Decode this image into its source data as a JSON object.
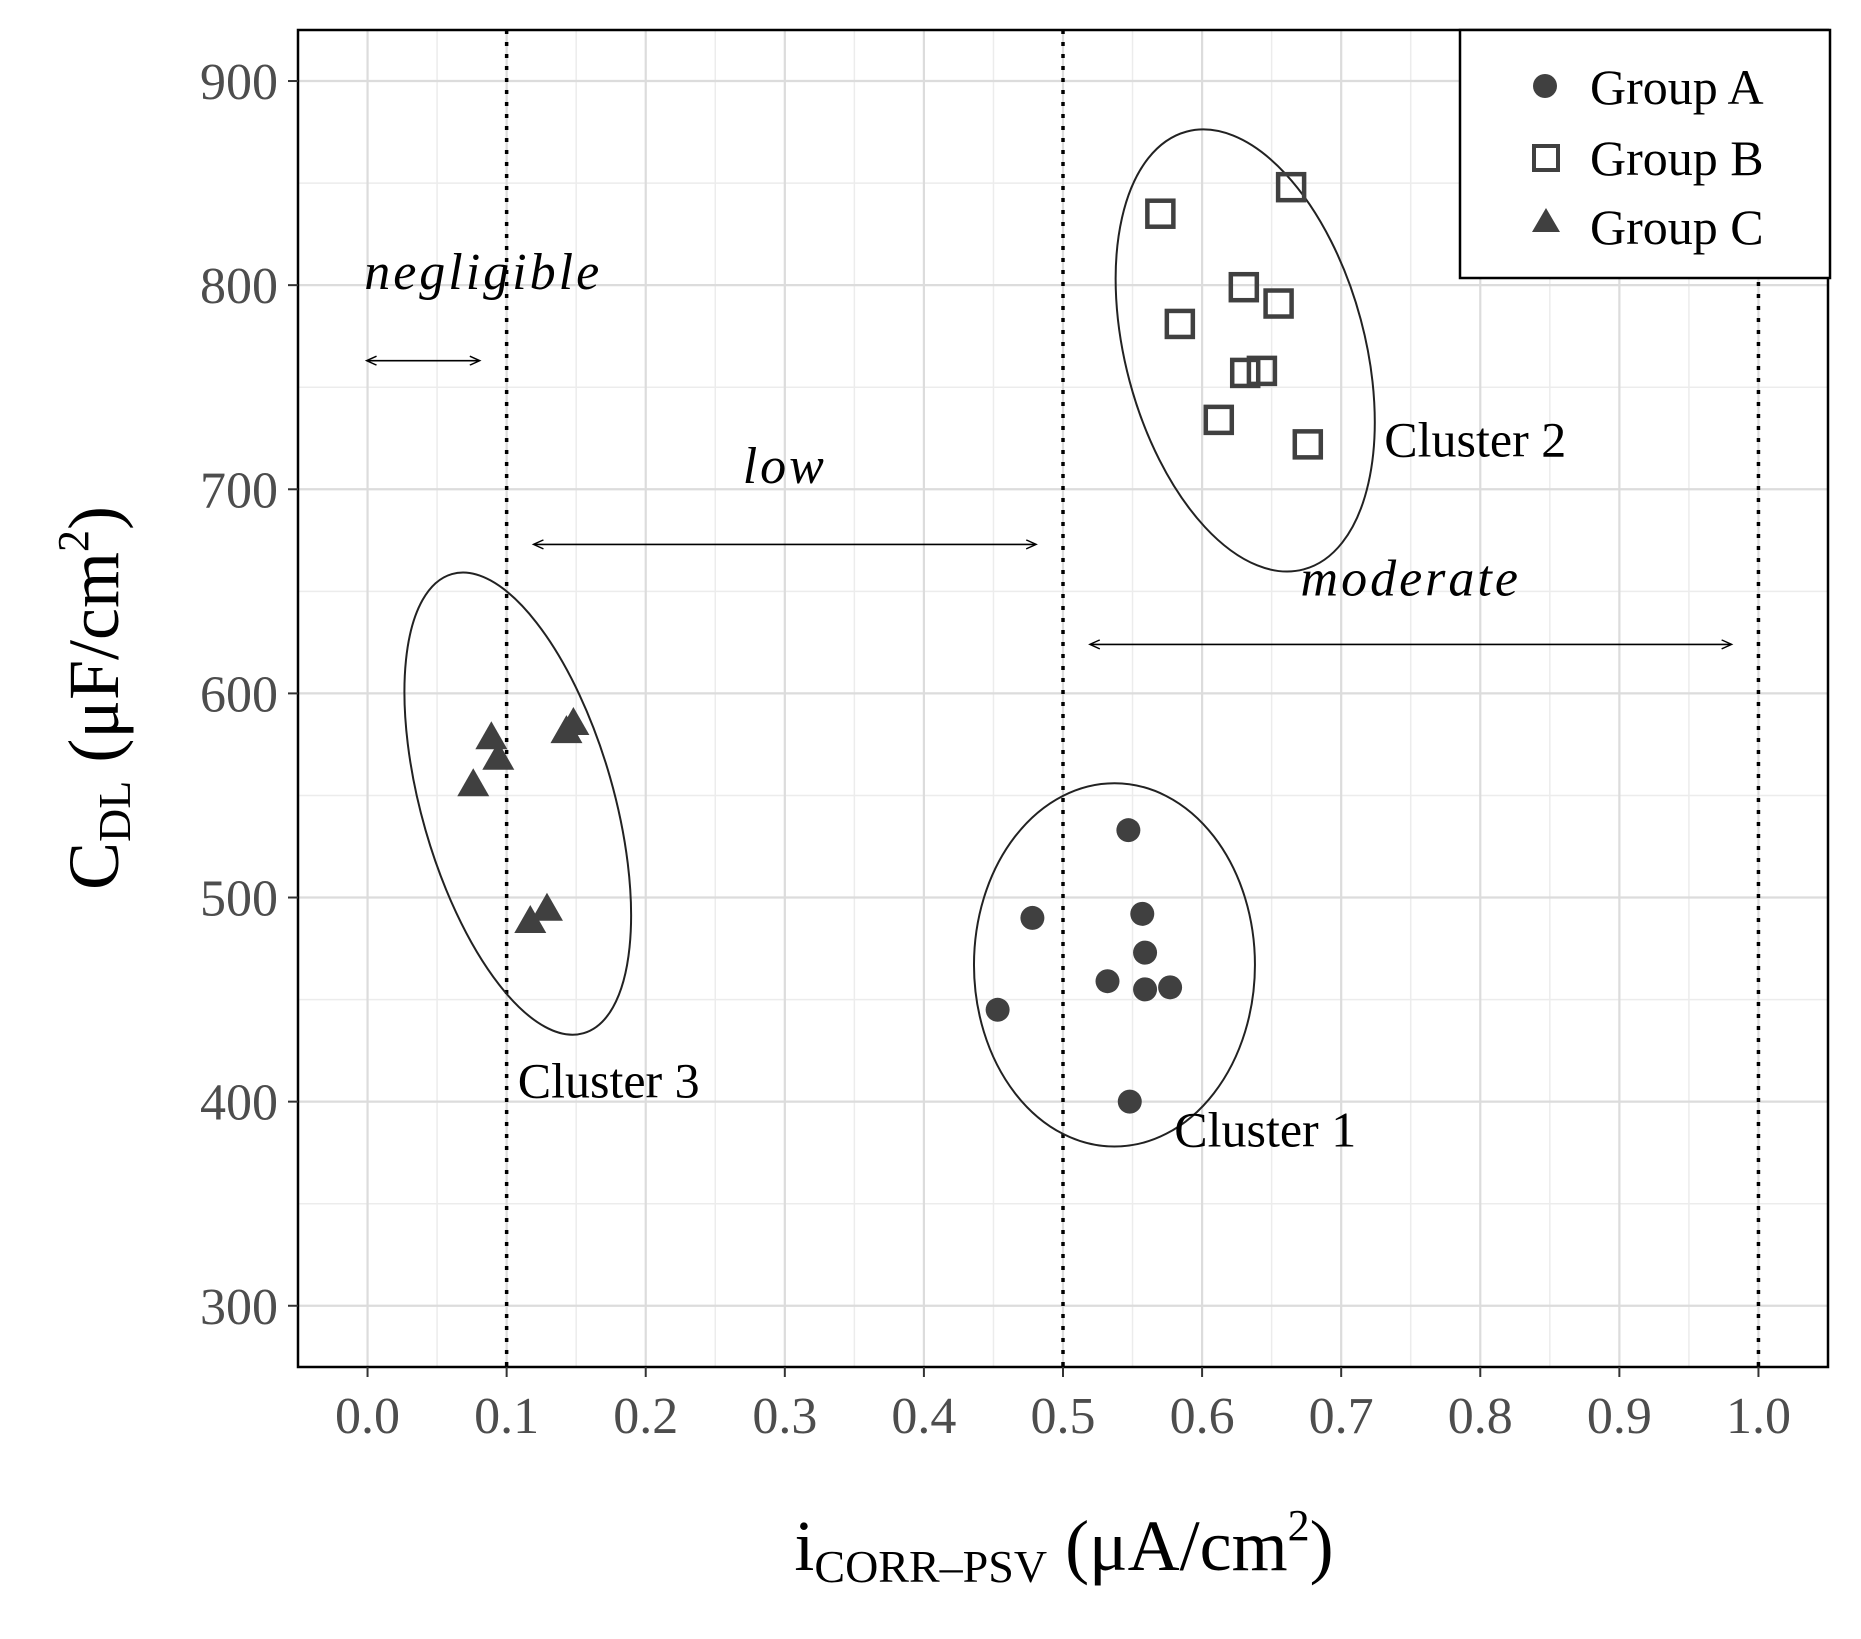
{
  "chart_data": {
    "type": "scatter",
    "xlabel": {
      "main": "i",
      "sub": "CORR–PSV",
      "unit_pre": " (μA/cm",
      "unit_sup": "2",
      "unit_post": ")"
    },
    "ylabel": {
      "main": "C",
      "sub": "DL",
      "unit_pre": " (μF/cm",
      "unit_sup": "2",
      "unit_post": ")"
    },
    "xlim": [
      -0.05,
      1.05
    ],
    "ylim": [
      270,
      925
    ],
    "x_ticks": [
      0.0,
      0.1,
      0.2,
      0.3,
      0.4,
      0.5,
      0.6,
      0.7,
      0.8,
      0.9,
      1.0
    ],
    "x_tick_labels": [
      "0.0",
      "0.1",
      "0.2",
      "0.3",
      "0.4",
      "0.5",
      "0.6",
      "0.7",
      "0.8",
      "0.9",
      "1.0"
    ],
    "y_ticks": [
      300,
      400,
      500,
      600,
      700,
      800,
      900
    ],
    "y_tick_labels": [
      "300",
      "400",
      "500",
      "600",
      "700",
      "800",
      "900"
    ],
    "grid": true,
    "legend_position": "top-right",
    "series": [
      {
        "name": "Group A",
        "marker": "circle",
        "color": "#404040",
        "points": [
          [
            0.547,
            533
          ],
          [
            0.478,
            490
          ],
          [
            0.557,
            492
          ],
          [
            0.559,
            473
          ],
          [
            0.532,
            459
          ],
          [
            0.559,
            455
          ],
          [
            0.577,
            456
          ],
          [
            0.453,
            445
          ],
          [
            0.548,
            400
          ]
        ]
      },
      {
        "name": "Group B",
        "marker": "square",
        "color": "#404040",
        "points": [
          [
            0.57,
            835
          ],
          [
            0.664,
            848
          ],
          [
            0.63,
            799
          ],
          [
            0.655,
            791
          ],
          [
            0.584,
            781
          ],
          [
            0.631,
            757
          ],
          [
            0.643,
            758
          ],
          [
            0.612,
            734
          ],
          [
            0.676,
            722
          ]
        ]
      },
      {
        "name": "Group C",
        "marker": "triangle",
        "color": "#404040",
        "points": [
          [
            0.089,
            578
          ],
          [
            0.094,
            568
          ],
          [
            0.076,
            555
          ],
          [
            0.143,
            581
          ],
          [
            0.148,
            585
          ],
          [
            0.129,
            494
          ],
          [
            0.117,
            488
          ]
        ]
      }
    ],
    "vlines": [
      0.1,
      0.5,
      1.0
    ],
    "ellipses": [
      {
        "label": "Cluster 1",
        "cx": 0.537,
        "cy": 467,
        "rx": 0.101,
        "ry": 89,
        "rotation_deg": 0
      },
      {
        "label": "Cluster 2",
        "cx": 0.631,
        "cy": 768,
        "rx": 0.086,
        "ry": 111,
        "rotation_deg": -15
      },
      {
        "label": "Cluster 3",
        "cx": 0.108,
        "cy": 546,
        "rx": 0.069,
        "ry": 117,
        "rotation_deg": -16
      }
    ],
    "range_annotations": [
      {
        "label": "negligible",
        "from": 0.0,
        "to": 0.08,
        "y_arrow": 763,
        "y_label": 798
      },
      {
        "label": "low",
        "from": 0.12,
        "to": 0.48,
        "y_arrow": 673,
        "y_label": 703
      },
      {
        "label": "moderate",
        "from": 0.52,
        "to": 0.98,
        "y_arrow": 624,
        "y_label": 648
      }
    ],
    "cluster_labels": [
      {
        "text": "Cluster 1",
        "x": 0.58,
        "y": 378
      },
      {
        "text": "Cluster 2",
        "x": 0.731,
        "y": 716
      },
      {
        "text": "Cluster 3",
        "x": 0.108,
        "y": 402
      }
    ]
  }
}
